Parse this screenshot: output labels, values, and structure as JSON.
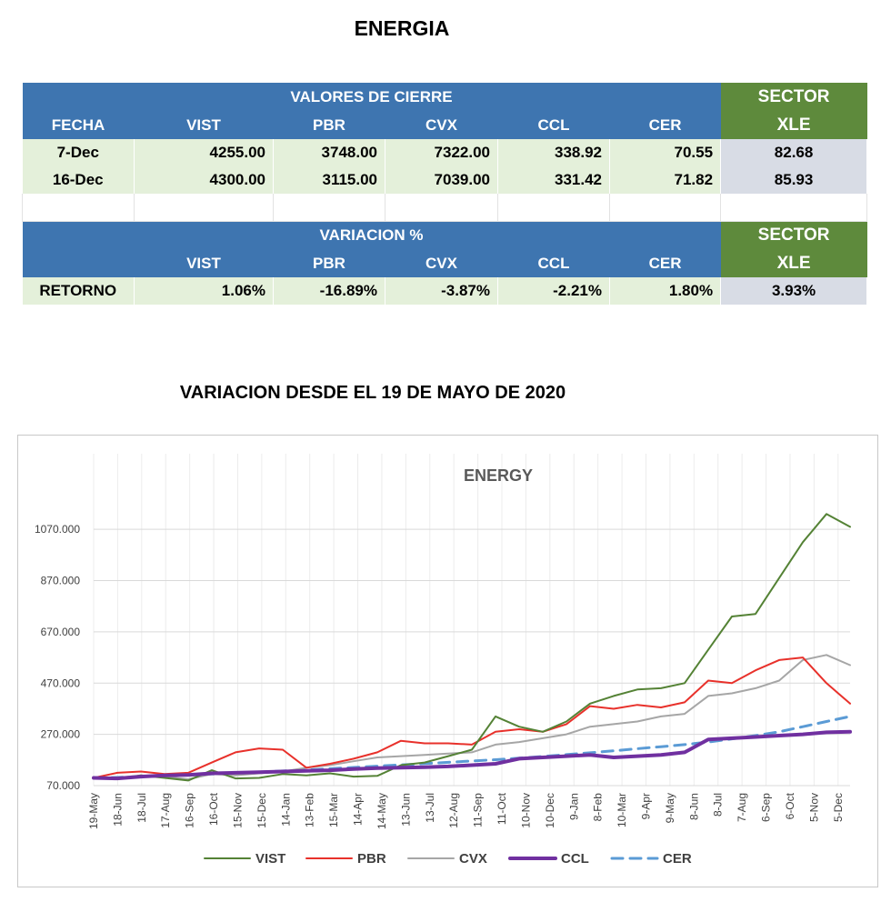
{
  "title": "ENERGIA",
  "table": {
    "header_group": "VALORES DE CIERRE",
    "sector_label": "SECTOR",
    "sector_ticker": "XLE",
    "columns": [
      "FECHA",
      "VIST",
      "PBR",
      "CVX",
      "CCL",
      "CER"
    ],
    "rows": [
      {
        "fecha": "7-Dec",
        "values": [
          "4255.00",
          "3748.00",
          "7322.00",
          "338.92",
          "70.55"
        ],
        "sector": "82.68"
      },
      {
        "fecha": "16-Dec",
        "values": [
          "4300.00",
          "3115.00",
          "7039.00",
          "331.42",
          "71.82"
        ],
        "sector": "85.93"
      }
    ],
    "variation_header": "VARIACION %",
    "variation_columns": [
      "VIST",
      "PBR",
      "CVX",
      "CCL",
      "CER"
    ],
    "variation_row": {
      "label": "RETORNO",
      "values": [
        "1.06%",
        "-16.89%",
        "-3.87%",
        "-2.21%",
        "1.80%"
      ],
      "sector": "3.93%"
    }
  },
  "chart_heading": "VARIACION DESDE EL 19 DE MAYO DE 2020",
  "chart_data": {
    "type": "line",
    "title": "ENERGY",
    "xlabel": "",
    "ylabel": "",
    "ylim": [
      70,
      1170
    ],
    "y_ticks": [
      "70.000",
      "270.000",
      "470.000",
      "670.000",
      "870.000",
      "1070.000"
    ],
    "x_tick_labels": [
      "19-May",
      "18-Jun",
      "18-Jul",
      "17-Aug",
      "16-Sep",
      "16-Oct",
      "15-Nov",
      "15-Dec",
      "14-Jan",
      "13-Feb",
      "15-Mar",
      "14-Apr",
      "14-May",
      "13-Jun",
      "13-Jul",
      "12-Aug",
      "11-Sep",
      "11-Oct",
      "10-Nov",
      "10-Dec",
      "9-Jan",
      "8-Feb",
      "10-Mar",
      "9-Apr",
      "9-May",
      "8-Jun",
      "8-Jul",
      "7-Aug",
      "6-Sep",
      "6-Oct",
      "5-Nov",
      "5-Dec"
    ],
    "grid": true,
    "legend_position": "bottom",
    "series": [
      {
        "name": "VIST",
        "color": "#548235",
        "style": "solid",
        "values": [
          100,
          95,
          110,
          100,
          90,
          130,
          98,
          100,
          115,
          110,
          118,
          105,
          108,
          150,
          160,
          185,
          210,
          340,
          300,
          280,
          320,
          390,
          420,
          445,
          450,
          470,
          600,
          730,
          740,
          880,
          1020,
          1130,
          1080
        ]
      },
      {
        "name": "PBR",
        "color": "#e8312b",
        "style": "solid",
        "values": [
          100,
          120,
          125,
          115,
          120,
          160,
          200,
          215,
          210,
          140,
          155,
          175,
          200,
          245,
          235,
          235,
          230,
          280,
          290,
          280,
          310,
          380,
          370,
          385,
          375,
          395,
          480,
          470,
          520,
          560,
          570,
          470,
          390
        ]
      },
      {
        "name": "CVX",
        "color": "#a6a6a6",
        "style": "solid",
        "values": [
          100,
          100,
          110,
          105,
          95,
          115,
          110,
          118,
          125,
          140,
          150,
          165,
          180,
          185,
          190,
          195,
          200,
          230,
          240,
          255,
          270,
          300,
          310,
          320,
          340,
          350,
          420,
          430,
          450,
          480,
          560,
          580,
          540
        ]
      },
      {
        "name": "CCL",
        "color": "#7030a0",
        "style": "thick",
        "values": [
          100,
          98,
          105,
          110,
          112,
          118,
          120,
          122,
          125,
          128,
          130,
          135,
          138,
          140,
          142,
          145,
          150,
          155,
          175,
          180,
          185,
          190,
          180,
          185,
          190,
          200,
          250,
          255,
          260,
          265,
          270,
          278,
          280
        ]
      },
      {
        "name": "CER",
        "color": "#5b9bd5",
        "style": "dashed",
        "values": [
          100,
          102,
          105,
          108,
          111,
          115,
          119,
          123,
          127,
          131,
          136,
          141,
          146,
          151,
          156,
          161,
          166,
          171,
          177,
          184,
          191,
          198,
          206,
          214,
          222,
          230,
          240,
          252,
          265,
          280,
          300,
          320,
          340
        ]
      }
    ]
  }
}
